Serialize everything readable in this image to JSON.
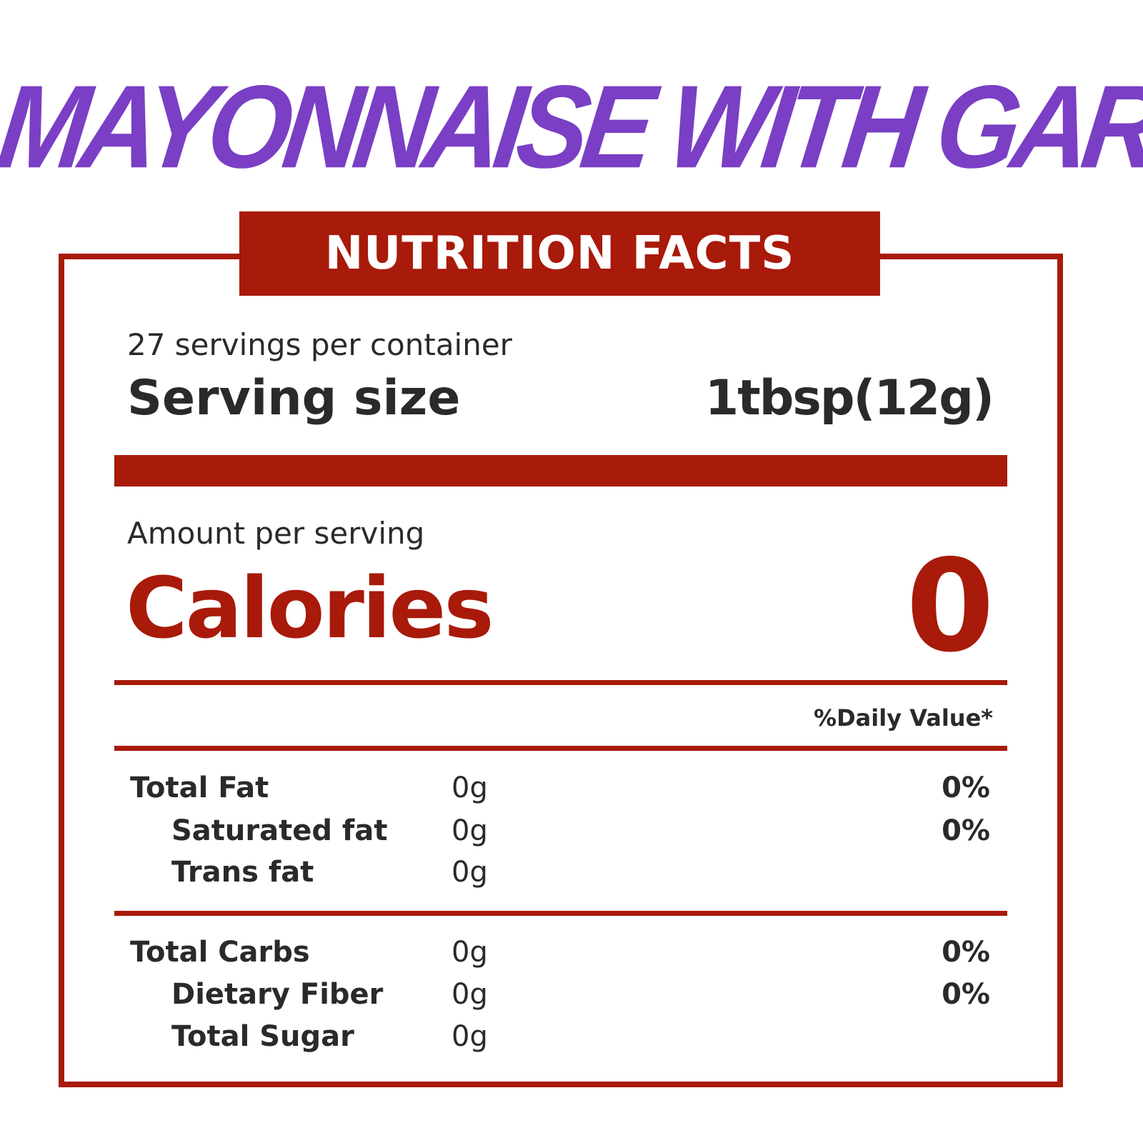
{
  "title": "MAYONNAISE WITH GARLIC",
  "header": "NUTRITION FACTS",
  "servings_per_container": "27 servings per container",
  "serving_size_label": "Serving size",
  "serving_size_value": "1tbsp(12g)",
  "amount_per_serving": "Amount per serving",
  "calories_label": "Calories",
  "calories_value": "0",
  "daily_value_header": "%Daily Value*",
  "colors": {
    "title": "#7a3fc4",
    "accent": "#a81a0a",
    "text": "#2a2a2a"
  },
  "fat_group": [
    {
      "name": "Total Fat",
      "amount": "0g",
      "dv": "0%"
    },
    {
      "name": "Saturated fat",
      "amount": "0g",
      "dv": "0%"
    },
    {
      "name": "Trans fat",
      "amount": "0g",
      "dv": ""
    }
  ],
  "carb_group": [
    {
      "name": "Total Carbs",
      "amount": "0g",
      "dv": "0%"
    },
    {
      "name": "Dietary Fiber",
      "amount": "0g",
      "dv": "0%"
    },
    {
      "name": "Total Sugar",
      "amount": "0g",
      "dv": ""
    }
  ]
}
